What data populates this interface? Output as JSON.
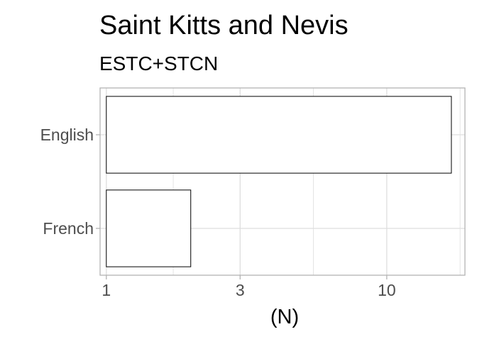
{
  "chart_data": {
    "type": "bar",
    "orientation": "horizontal",
    "title": "Saint Kitts and Nevis",
    "subtitle": "ESTC+STCN",
    "xlabel": "(N)",
    "ylabel": "",
    "x_scale": "log10",
    "xlim": [
      0.95,
      19
    ],
    "x_ticks": [
      1,
      3,
      10
    ],
    "x_tick_labels": [
      "1",
      "3",
      "10"
    ],
    "grid": true,
    "legend": "none",
    "categories": [
      "English",
      "French"
    ],
    "values": [
      17,
      2
    ],
    "colors": {
      "bar_fill": "#ffffff",
      "bar_stroke": "#000000",
      "panel_border": "#b3b3b3",
      "grid": "#dedede",
      "tick_label": "#4d4d4d"
    }
  }
}
